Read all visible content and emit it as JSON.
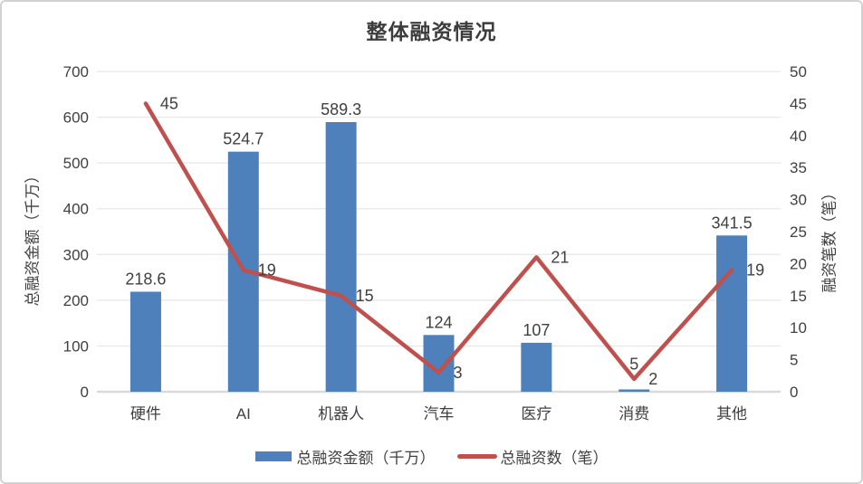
{
  "chart": {
    "title": "整体融资情况",
    "left_axis_title": "总融资金额（千万）",
    "right_axis_title": "融资笔数（笔）",
    "legend": {
      "bar_label": "总融资金额（千万）",
      "line_label": "总融资数（笔）"
    }
  },
  "colors": {
    "bar": "#4e80bb",
    "line": "#c0504d",
    "grid": "#e7e7e7",
    "axis_line": "#d9d9d9",
    "text": "#404040",
    "title_text": "#3c3c3c",
    "border": "#d2d2d2",
    "background": "#ffffff"
  },
  "chart_data": {
    "type": "combo",
    "title": "整体融资情况",
    "categories": [
      "硬件",
      "AI",
      "机器人",
      "汽车",
      "医疗",
      "消费",
      "其他"
    ],
    "series": [
      {
        "name": "总融资金额（千万）",
        "type": "bar",
        "axis": "left",
        "values": [
          218.6,
          524.7,
          589.3,
          124,
          107,
          5,
          341.5
        ]
      },
      {
        "name": "总融资数（笔）",
        "type": "line",
        "axis": "right",
        "values": [
          45,
          19,
          15,
          3,
          21,
          2,
          19
        ]
      }
    ],
    "left_axis": {
      "label": "总融资金额（千万）",
      "min": 0,
      "max": 700,
      "ticks": [
        0,
        100,
        200,
        300,
        400,
        500,
        600,
        700
      ]
    },
    "right_axis": {
      "label": "融资笔数（笔）",
      "min": 0,
      "max": 50,
      "ticks": [
        0,
        5,
        10,
        15,
        20,
        25,
        30,
        35,
        40,
        45,
        50
      ]
    },
    "grid": true,
    "data_labels": true,
    "legend_position": "bottom"
  }
}
